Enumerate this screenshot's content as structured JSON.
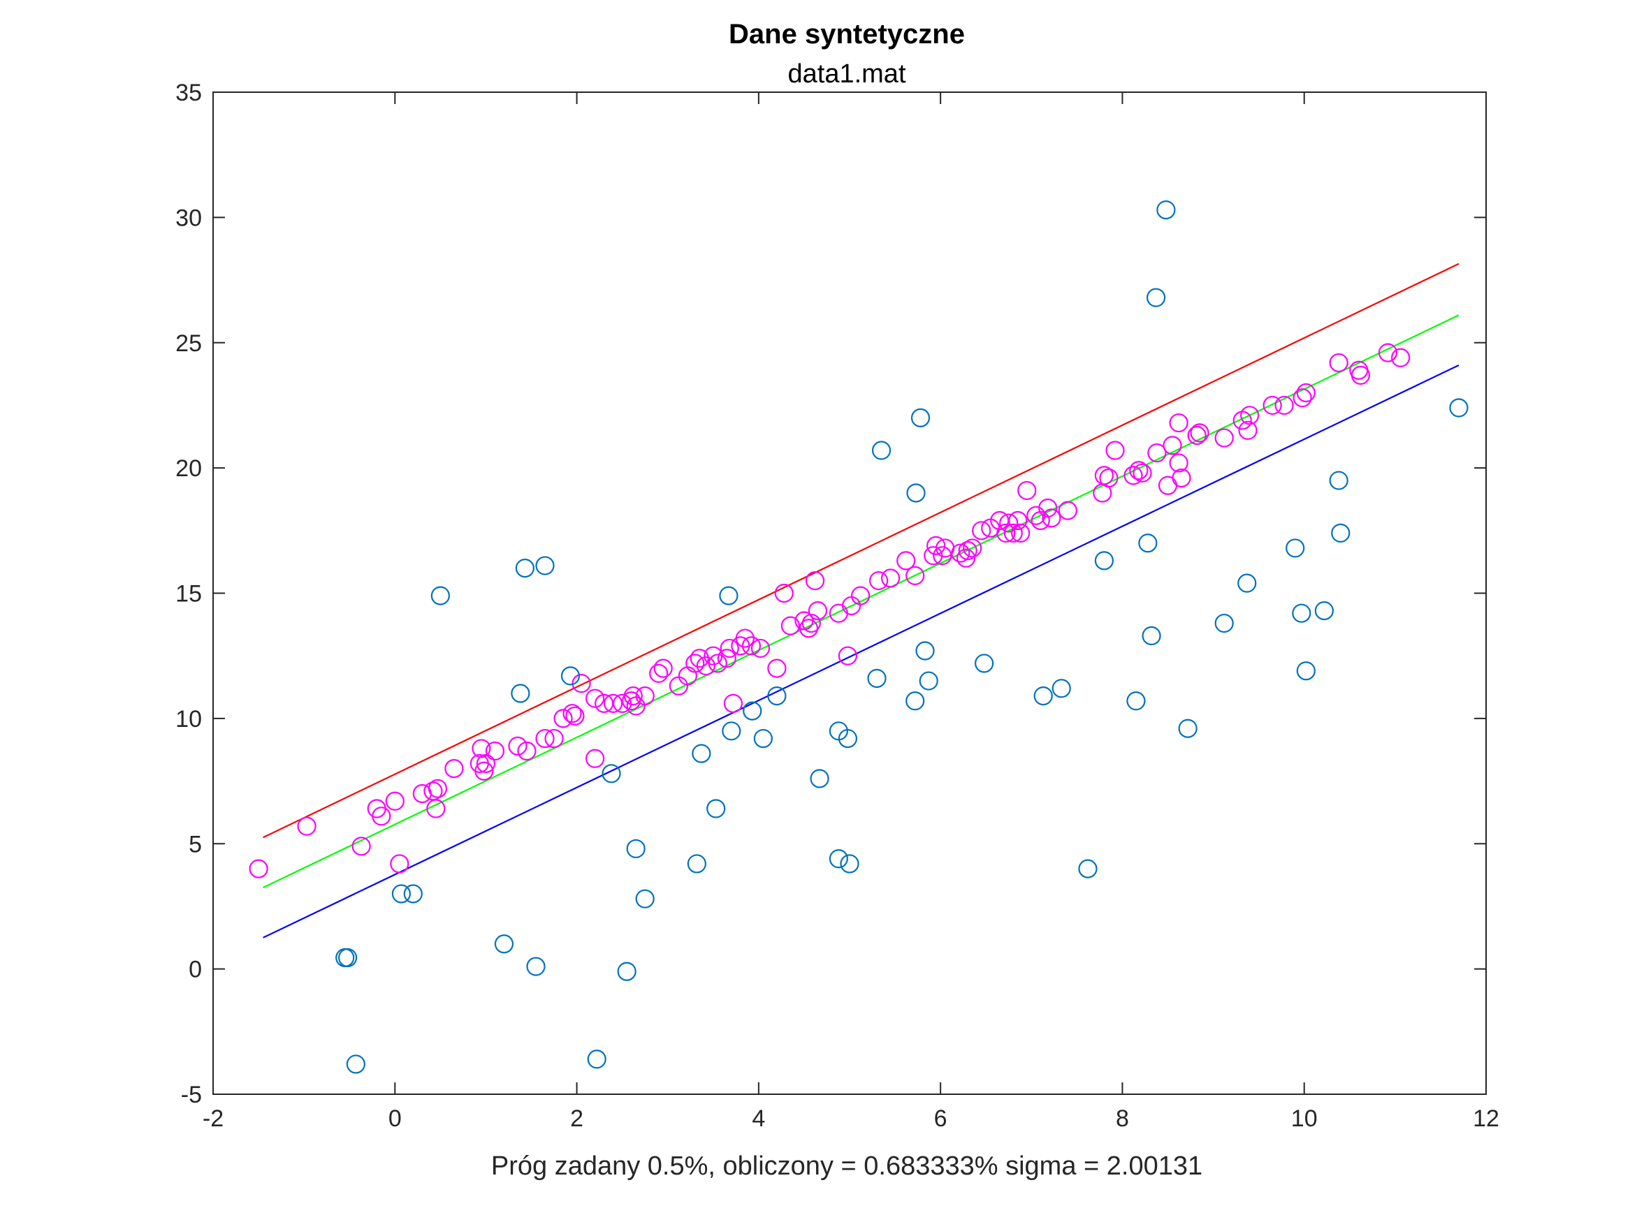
{
  "chart_data": {
    "type": "scatter",
    "title": "Dane syntetyczne",
    "subtitle": "data1.mat",
    "xlabel": "Próg zadany 0.5%, obliczony = 0.683333% sigma = 2.00131",
    "ylabel": "",
    "xlim": [
      -2,
      12
    ],
    "ylim": [
      -5,
      35
    ],
    "xticks": [
      -2,
      0,
      2,
      4,
      6,
      8,
      10,
      12
    ],
    "yticks": [
      -5,
      0,
      5,
      10,
      15,
      20,
      25,
      30,
      35
    ],
    "grid": false,
    "lines": [
      {
        "color": "#ff0000",
        "x": [
          -1.45,
          11.7
        ],
        "y": [
          5.25,
          28.15
        ]
      },
      {
        "color": "#00ff00",
        "x": [
          -1.45,
          11.7
        ],
        "y": [
          3.25,
          26.1
        ]
      },
      {
        "color": "#0000ff",
        "x": [
          -1.45,
          11.7
        ],
        "y": [
          1.25,
          24.1
        ]
      }
    ],
    "series": [
      {
        "color": "#ff00ff",
        "points": [
          [
            -1.5,
            4.0
          ],
          [
            -0.97,
            5.7
          ],
          [
            -0.37,
            4.9
          ],
          [
            -0.2,
            6.4
          ],
          [
            -0.15,
            6.1
          ],
          [
            0.0,
            6.7
          ],
          [
            0.05,
            4.2
          ],
          [
            0.3,
            7.0
          ],
          [
            0.42,
            7.1
          ],
          [
            0.45,
            6.4
          ],
          [
            0.47,
            7.2
          ],
          [
            0.65,
            8.0
          ],
          [
            0.93,
            8.2
          ],
          [
            0.95,
            8.8
          ],
          [
            0.98,
            7.9
          ],
          [
            1.0,
            8.2
          ],
          [
            1.1,
            8.7
          ],
          [
            1.35,
            8.9
          ],
          [
            1.45,
            8.7
          ],
          [
            1.65,
            9.2
          ],
          [
            1.75,
            9.2
          ],
          [
            1.85,
            10.0
          ],
          [
            1.95,
            10.2
          ],
          [
            1.98,
            10.1
          ],
          [
            2.05,
            11.4
          ],
          [
            2.2,
            8.4
          ],
          [
            2.2,
            10.8
          ],
          [
            2.3,
            10.6
          ],
          [
            2.4,
            10.6
          ],
          [
            2.5,
            10.6
          ],
          [
            2.6,
            10.7
          ],
          [
            2.62,
            10.9
          ],
          [
            2.65,
            10.5
          ],
          [
            2.75,
            10.9
          ],
          [
            2.9,
            11.8
          ],
          [
            2.95,
            12.0
          ],
          [
            3.12,
            11.3
          ],
          [
            3.22,
            11.7
          ],
          [
            3.3,
            12.2
          ],
          [
            3.35,
            12.4
          ],
          [
            3.42,
            12.1
          ],
          [
            3.5,
            12.5
          ],
          [
            3.55,
            12.2
          ],
          [
            3.65,
            12.4
          ],
          [
            3.68,
            12.8
          ],
          [
            3.72,
            10.6
          ],
          [
            3.8,
            12.9
          ],
          [
            3.85,
            13.2
          ],
          [
            3.92,
            12.9
          ],
          [
            4.02,
            12.8
          ],
          [
            4.2,
            12.0
          ],
          [
            4.28,
            15.0
          ],
          [
            4.35,
            13.7
          ],
          [
            4.5,
            13.9
          ],
          [
            4.55,
            13.6
          ],
          [
            4.58,
            13.8
          ],
          [
            4.62,
            15.5
          ],
          [
            4.65,
            14.3
          ],
          [
            4.88,
            14.2
          ],
          [
            4.98,
            12.5
          ],
          [
            5.02,
            14.5
          ],
          [
            5.12,
            14.9
          ],
          [
            5.32,
            15.5
          ],
          [
            5.45,
            15.6
          ],
          [
            5.62,
            16.3
          ],
          [
            5.72,
            15.7
          ],
          [
            5.92,
            16.5
          ],
          [
            5.95,
            16.9
          ],
          [
            6.02,
            16.5
          ],
          [
            6.05,
            16.8
          ],
          [
            6.22,
            16.6
          ],
          [
            6.28,
            16.4
          ],
          [
            6.3,
            16.7
          ],
          [
            6.35,
            16.8
          ],
          [
            6.45,
            17.5
          ],
          [
            6.55,
            17.6
          ],
          [
            6.65,
            17.9
          ],
          [
            6.72,
            17.4
          ],
          [
            6.75,
            17.8
          ],
          [
            6.8,
            17.4
          ],
          [
            6.85,
            17.9
          ],
          [
            6.88,
            17.4
          ],
          [
            6.95,
            19.1
          ],
          [
            7.05,
            18.1
          ],
          [
            7.1,
            17.9
          ],
          [
            7.18,
            18.4
          ],
          [
            7.22,
            18.0
          ],
          [
            7.4,
            18.3
          ],
          [
            7.78,
            19.0
          ],
          [
            7.8,
            19.7
          ],
          [
            7.85,
            19.6
          ],
          [
            7.92,
            20.7
          ],
          [
            8.12,
            19.7
          ],
          [
            8.18,
            19.9
          ],
          [
            8.22,
            19.8
          ],
          [
            8.38,
            20.6
          ],
          [
            8.5,
            19.3
          ],
          [
            8.55,
            20.9
          ],
          [
            8.62,
            21.8
          ],
          [
            8.62,
            20.2
          ],
          [
            8.65,
            19.6
          ],
          [
            8.82,
            21.3
          ],
          [
            8.85,
            21.4
          ],
          [
            9.12,
            21.2
          ],
          [
            9.32,
            21.9
          ],
          [
            9.38,
            21.5
          ],
          [
            9.4,
            22.1
          ],
          [
            9.65,
            22.5
          ],
          [
            9.78,
            22.5
          ],
          [
            9.98,
            22.8
          ],
          [
            10.02,
            23.0
          ],
          [
            10.38,
            24.2
          ],
          [
            10.6,
            23.9
          ],
          [
            10.62,
            23.7
          ],
          [
            10.92,
            24.6
          ],
          [
            11.06,
            24.4
          ]
        ]
      },
      {
        "color": "#0072bd",
        "points": [
          [
            -0.55,
            0.45
          ],
          [
            -0.52,
            0.45
          ],
          [
            -0.43,
            -3.8
          ],
          [
            0.07,
            3.0
          ],
          [
            0.2,
            3.0
          ],
          [
            0.5,
            14.9
          ],
          [
            1.2,
            1.0
          ],
          [
            1.38,
            11.0
          ],
          [
            1.43,
            16.0
          ],
          [
            1.55,
            0.1
          ],
          [
            1.65,
            16.1
          ],
          [
            1.93,
            11.7
          ],
          [
            2.22,
            -3.6
          ],
          [
            2.38,
            7.8
          ],
          [
            2.55,
            -0.1
          ],
          [
            2.65,
            4.8
          ],
          [
            2.75,
            2.8
          ],
          [
            3.32,
            4.2
          ],
          [
            3.37,
            8.6
          ],
          [
            3.53,
            6.4
          ],
          [
            3.67,
            14.9
          ],
          [
            3.7,
            9.5
          ],
          [
            3.93,
            10.3
          ],
          [
            4.05,
            9.2
          ],
          [
            4.2,
            10.9
          ],
          [
            4.67,
            7.6
          ],
          [
            4.88,
            4.4
          ],
          [
            4.88,
            9.5
          ],
          [
            5.0,
            4.2
          ],
          [
            4.98,
            9.2
          ],
          [
            5.3,
            11.6
          ],
          [
            5.35,
            20.7
          ],
          [
            5.72,
            10.7
          ],
          [
            5.73,
            19.0
          ],
          [
            5.78,
            22.0
          ],
          [
            5.83,
            12.7
          ],
          [
            5.87,
            11.5
          ],
          [
            6.48,
            12.2
          ],
          [
            7.13,
            10.9
          ],
          [
            7.33,
            11.2
          ],
          [
            7.62,
            4.0
          ],
          [
            7.8,
            16.3
          ],
          [
            8.15,
            10.7
          ],
          [
            8.28,
            17.0
          ],
          [
            8.32,
            13.3
          ],
          [
            8.37,
            26.8
          ],
          [
            8.48,
            30.3
          ],
          [
            8.72,
            9.6
          ],
          [
            9.12,
            13.8
          ],
          [
            9.37,
            15.4
          ],
          [
            9.9,
            16.8
          ],
          [
            9.97,
            14.2
          ],
          [
            10.02,
            11.9
          ],
          [
            10.22,
            14.3
          ],
          [
            10.38,
            19.5
          ],
          [
            10.4,
            17.4
          ],
          [
            11.7,
            22.4
          ]
        ]
      }
    ]
  }
}
